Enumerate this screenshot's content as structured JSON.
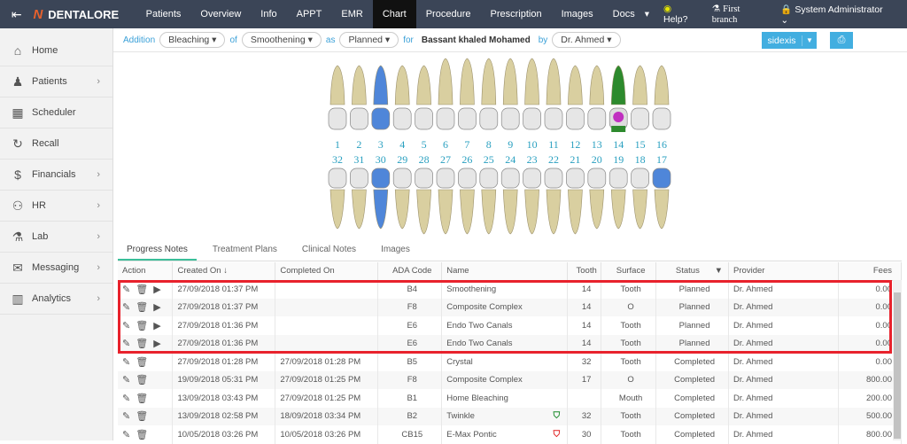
{
  "topbar": {
    "brand": "DENTALORE",
    "nav": [
      "Patients",
      "Overview",
      "Info",
      "APPT",
      "EMR",
      "Chart",
      "Procedure",
      "Prescription",
      "Images",
      "Docs"
    ],
    "active": "Chart",
    "help": "Help?",
    "branch": "First branch",
    "user": "System Administrator"
  },
  "sidebar": {
    "items": [
      {
        "label": "Home",
        "icon": "home-icon",
        "sub": false
      },
      {
        "label": "Patients",
        "icon": "user-icon",
        "sub": true
      },
      {
        "label": "Scheduler",
        "icon": "calendar-icon",
        "sub": false
      },
      {
        "label": "Recall",
        "icon": "recall-icon",
        "sub": false
      },
      {
        "label": "Financials",
        "icon": "dollar-icon",
        "sub": true
      },
      {
        "label": "HR",
        "icon": "users-icon",
        "sub": true
      },
      {
        "label": "Lab",
        "icon": "flask-icon",
        "sub": true
      },
      {
        "label": "Messaging",
        "icon": "envelope-icon",
        "sub": true
      },
      {
        "label": "Analytics",
        "icon": "bar-chart-icon",
        "sub": true
      }
    ]
  },
  "toolbar": {
    "addition": "Addition",
    "procedure": "Bleaching",
    "of": "of",
    "sub": "Smoothening",
    "as": "as",
    "status": "Planned",
    "for": "for",
    "patient": "Bassant khaled Mohamed",
    "by": "by",
    "doctor": "Dr. Ahmed",
    "sidexis": "sidexis"
  },
  "teeth": {
    "upper": [
      "1",
      "2",
      "3",
      "4",
      "5",
      "6",
      "7",
      "8",
      "9",
      "10",
      "11",
      "12",
      "13",
      "14",
      "15",
      "16"
    ],
    "lower": [
      "32",
      "31",
      "30",
      "29",
      "28",
      "27",
      "26",
      "25",
      "24",
      "23",
      "22",
      "21",
      "20",
      "19",
      "18",
      "17"
    ],
    "highlight_color": "#4f86d9",
    "number_color": "#2aa0c0"
  },
  "tabs": [
    "Progress Notes",
    "Treatment Plans",
    "Clinical Notes",
    "Images"
  ],
  "table": {
    "headers": [
      "Action",
      "Created On",
      "Completed On",
      "ADA Code",
      "Name",
      "Tooth",
      "Surface",
      "Status",
      "Provider",
      "Fees"
    ],
    "rows": [
      [
        "27/09/2018 01:37 PM",
        "",
        "B4",
        "Smoothening",
        "14",
        "Tooth",
        "Planned",
        "Dr. Ahmed",
        "0.00"
      ],
      [
        "27/09/2018 01:37 PM",
        "",
        "F8",
        "Composite Complex",
        "14",
        "O",
        "Planned",
        "Dr. Ahmed",
        "0.00"
      ],
      [
        "27/09/2018 01:36 PM",
        "",
        "E6",
        "Endo Two Canals",
        "14",
        "Tooth",
        "Planned",
        "Dr. Ahmed",
        "0.00"
      ],
      [
        "27/09/2018 01:36 PM",
        "",
        "E6",
        "Endo Two Canals",
        "14",
        "Tooth",
        "Planned",
        "Dr. Ahmed",
        "0.00"
      ],
      [
        "27/09/2018 01:28 PM",
        "27/09/2018 01:28 PM",
        "B5",
        "Crystal",
        "32",
        "Tooth",
        "Completed",
        "Dr. Ahmed",
        "0.00"
      ],
      [
        "19/09/2018 05:31 PM",
        "27/09/2018 01:25 PM",
        "F8",
        "Composite Complex",
        "17",
        "O",
        "Completed",
        "Dr. Ahmed",
        "800.00"
      ],
      [
        "13/09/2018 03:43 PM",
        "27/09/2018 01:25 PM",
        "B1",
        "Home Bleaching",
        "",
        "Mouth",
        "Completed",
        "Dr. Ahmed",
        "200.00"
      ],
      [
        "13/09/2018 02:58 PM",
        "18/09/2018 03:34 PM",
        "B2",
        "Twinkle",
        "32",
        "Tooth",
        "Completed",
        "Dr. Ahmed",
        "500.00"
      ],
      [
        "10/05/2018 03:26 PM",
        "10/05/2018 03:26 PM",
        "CB15",
        "E-Max Pontic",
        "30",
        "Tooth",
        "Completed",
        "Dr. Ahmed",
        "800.00"
      ]
    ]
  }
}
